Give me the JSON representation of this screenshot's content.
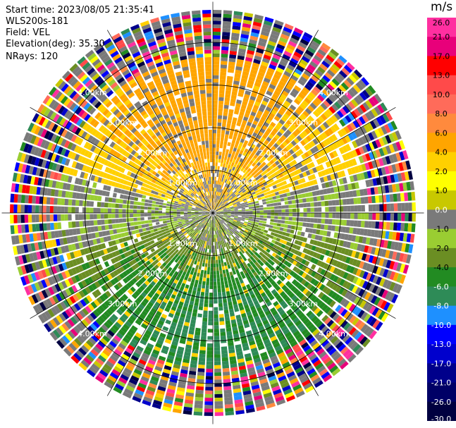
{
  "header": {
    "start_time_label": "Start time:",
    "start_time": "2023/08/05 21:35:41",
    "site": "WLS200s-181",
    "field_label": "Field:",
    "field": "VEL",
    "elevation_label": "Elevation(deg):",
    "elevation": "35.30",
    "nrays_label": "NRays:",
    "nrays": "120"
  },
  "colorbar": {
    "unit": "m/s",
    "ticks": [
      "26.0",
      "21.0",
      "17.0",
      "13.0",
      "10.0",
      "8.0",
      "6.0",
      "4.0",
      "2.0",
      "1.0",
      "0.0",
      "-1.0",
      "-2.0",
      "-4.0",
      "-6.0",
      "-8.0",
      "-10.0",
      "-13.0",
      "-17.0",
      "-21.0",
      "-26.0",
      "-30.0"
    ],
    "colors": [
      "#ff2fa0",
      "#e8007a",
      "#ff0000",
      "#ff4a4a",
      "#ff6b5a",
      "#ff8a3d",
      "#ffa500",
      "#ffd000",
      "#ffff00",
      "#c8c800",
      "#7a7a7a",
      "#9acd32",
      "#6b8e23",
      "#228b22",
      "#2e8b57",
      "#1e90ff",
      "#0000ff",
      "#0000cd",
      "#00008b",
      "#000066",
      "#000040"
    ]
  },
  "chart_data": {
    "type": "heatmap",
    "title": "",
    "field": "VEL",
    "unit": "m/s",
    "n_rays": 120,
    "range_rings_km": [
      1.0,
      2.0,
      3.0,
      4.0
    ],
    "range_ring_labels": [
      "1.00km",
      "2.00km",
      "3.00km",
      "4.00km"
    ],
    "max_range_km": 4.75,
    "spoke_angles_deg": [
      0,
      30,
      60,
      90,
      120,
      150,
      180,
      210,
      240,
      270,
      300,
      330
    ],
    "color_scale": [
      26.0,
      21.0,
      17.0,
      13.0,
      10.0,
      8.0,
      6.0,
      4.0,
      2.0,
      1.0,
      0.0,
      -1.0,
      -2.0,
      -4.0,
      -6.0,
      -8.0,
      -10.0,
      -13.0,
      -17.0,
      -21.0,
      -26.0,
      -30.0
    ],
    "dominant_pattern": [
      {
        "sector": "north",
        "range_km": [
          0.5,
          3.0
        ],
        "typical_value": 3.0
      },
      {
        "sector": "northeast",
        "range_km": [
          1.0,
          3.0
        ],
        "typical_value": 2.5
      },
      {
        "sector": "northwest",
        "range_km": [
          1.0,
          3.0
        ],
        "typical_value": 0.0
      },
      {
        "sector": "west",
        "range_km": [
          0.5,
          3.0
        ],
        "typical_value": -1.5
      },
      {
        "sector": "east",
        "range_km": [
          0.5,
          3.0
        ],
        "typical_value": -1.5
      },
      {
        "sector": "south",
        "range_km": [
          1.5,
          4.0
        ],
        "typical_value": -5.0
      },
      {
        "sector": "outer",
        "range_km": [
          3.5,
          4.75
        ],
        "typical_value": "mixed noise"
      }
    ]
  }
}
